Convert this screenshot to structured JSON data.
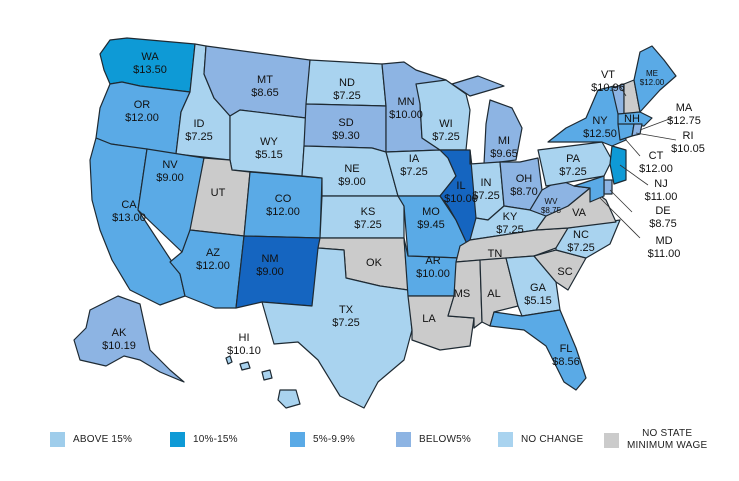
{
  "colors": {
    "above_15": "#9fcdeb",
    "pct_10_15": "#0e9ad6",
    "pct_5_10": "#5aaae6",
    "below_5": "#8db4e3",
    "no_change": "#a9d3ef",
    "no_min_wage": "#cbcbcb",
    "dark_blue": "#1565c0",
    "border": "#1e2a33"
  },
  "states": {
    "WA": {
      "abbr": "WA",
      "wage": "$13.50",
      "category": "pct_10_15"
    },
    "OR": {
      "abbr": "OR",
      "wage": "$12.00",
      "category": "pct_5_10"
    },
    "CA": {
      "abbr": "CA",
      "wage": "$13.00",
      "category": "pct_5_10"
    },
    "ID": {
      "abbr": "ID",
      "wage": "$7.25",
      "category": "no_change"
    },
    "NV": {
      "abbr": "NV",
      "wage": "$9.00",
      "category": "pct_5_10"
    },
    "MT": {
      "abbr": "MT",
      "wage": "$8.65",
      "category": "below_5"
    },
    "WY": {
      "abbr": "WY",
      "wage": "$5.15",
      "category": "no_change"
    },
    "UT": {
      "abbr": "UT",
      "wage": "",
      "category": "no_min_wage"
    },
    "AZ": {
      "abbr": "AZ",
      "wage": "$12.00",
      "category": "pct_5_10"
    },
    "CO": {
      "abbr": "CO",
      "wage": "$12.00",
      "category": "pct_5_10"
    },
    "NM": {
      "abbr": "NM",
      "wage": "$9.00",
      "category": "dark_blue"
    },
    "ND": {
      "abbr": "ND",
      "wage": "$7.25",
      "category": "no_change"
    },
    "SD": {
      "abbr": "SD",
      "wage": "$9.30",
      "category": "below_5"
    },
    "NE": {
      "abbr": "NE",
      "wage": "$9.00",
      "category": "no_change"
    },
    "KS": {
      "abbr": "KS",
      "wage": "$7.25",
      "category": "no_change"
    },
    "OK": {
      "abbr": "OK",
      "wage": "",
      "category": "no_min_wage"
    },
    "TX": {
      "abbr": "TX",
      "wage": "$7.25",
      "category": "no_change"
    },
    "MN": {
      "abbr": "MN",
      "wage": "$10.00",
      "category": "below_5"
    },
    "IA": {
      "abbr": "IA",
      "wage": "$7.25",
      "category": "no_change"
    },
    "MO": {
      "abbr": "MO",
      "wage": "$9.45",
      "category": "pct_5_10"
    },
    "AR": {
      "abbr": "AR",
      "wage": "$10.00",
      "category": "pct_5_10"
    },
    "LA": {
      "abbr": "LA",
      "wage": "",
      "category": "no_min_wage"
    },
    "WI": {
      "abbr": "WI",
      "wage": "$7.25",
      "category": "no_change"
    },
    "IL": {
      "abbr": "IL",
      "wage": "$10.00",
      "category": "dark_blue"
    },
    "MI": {
      "abbr": "MI",
      "wage": "$9.65",
      "category": "below_5"
    },
    "IN": {
      "abbr": "IN",
      "wage": "$7.25",
      "category": "no_change"
    },
    "OH": {
      "abbr": "OH",
      "wage": "$8.70",
      "category": "below_5"
    },
    "KY": {
      "abbr": "KY",
      "wage": "$7.25",
      "category": "no_change"
    },
    "TN": {
      "abbr": "TN",
      "wage": "",
      "category": "no_min_wage"
    },
    "MS": {
      "abbr": "MS",
      "wage": "",
      "category": "no_min_wage"
    },
    "AL": {
      "abbr": "AL",
      "wage": "",
      "category": "no_min_wage"
    },
    "GA": {
      "abbr": "GA",
      "wage": "$5.15",
      "category": "no_change"
    },
    "FL": {
      "abbr": "FL",
      "wage": "$8.56",
      "category": "pct_5_10"
    },
    "SC": {
      "abbr": "SC",
      "wage": "",
      "category": "no_min_wage"
    },
    "NC": {
      "abbr": "NC",
      "wage": "$7.25",
      "category": "no_change"
    },
    "VA": {
      "abbr": "VA",
      "wage": "",
      "category": "no_min_wage"
    },
    "WV": {
      "abbr": "WV",
      "wage": "$8.75",
      "category": "below_5"
    },
    "PA": {
      "abbr": "PA",
      "wage": "$7.25",
      "category": "no_change"
    },
    "NY": {
      "abbr": "NY",
      "wage": "$12.50",
      "category": "pct_5_10"
    },
    "VT": {
      "abbr": "VT",
      "wage": "$10.96",
      "category": "below_5"
    },
    "NH": {
      "abbr": "NH",
      "wage": "",
      "category": "no_min_wage"
    },
    "ME": {
      "abbr": "ME",
      "wage": "$12.00",
      "category": "pct_5_10"
    },
    "MA": {
      "abbr": "MA",
      "wage": "$12.75",
      "category": "pct_5_10"
    },
    "RI": {
      "abbr": "RI",
      "wage": "$10.05",
      "category": "below_5"
    },
    "CT": {
      "abbr": "CT",
      "wage": "$12.00",
      "category": "pct_5_10"
    },
    "NJ": {
      "abbr": "NJ",
      "wage": "$11.00",
      "category": "pct_10_15"
    },
    "DE": {
      "abbr": "DE",
      "wage": "$8.75",
      "category": "below_5"
    },
    "MD": {
      "abbr": "MD",
      "wage": "$11.00",
      "category": "pct_5_10"
    },
    "AK": {
      "abbr": "AK",
      "wage": "$10.19",
      "category": "below_5"
    },
    "HI": {
      "abbr": "HI",
      "wage": "$10.10",
      "category": "no_change"
    }
  },
  "legend": [
    {
      "key": "above_15",
      "label": "ABOVE 15%"
    },
    {
      "key": "pct_10_15",
      "label": "10%-15%"
    },
    {
      "key": "pct_5_10",
      "label": "5%-9.9%"
    },
    {
      "key": "below_5",
      "label": "BELOW5%"
    },
    {
      "key": "no_change",
      "label": "NO CHANGE"
    },
    {
      "key": "no_min_wage",
      "label": "NO STATE\nMINIMUM WAGE"
    }
  ]
}
